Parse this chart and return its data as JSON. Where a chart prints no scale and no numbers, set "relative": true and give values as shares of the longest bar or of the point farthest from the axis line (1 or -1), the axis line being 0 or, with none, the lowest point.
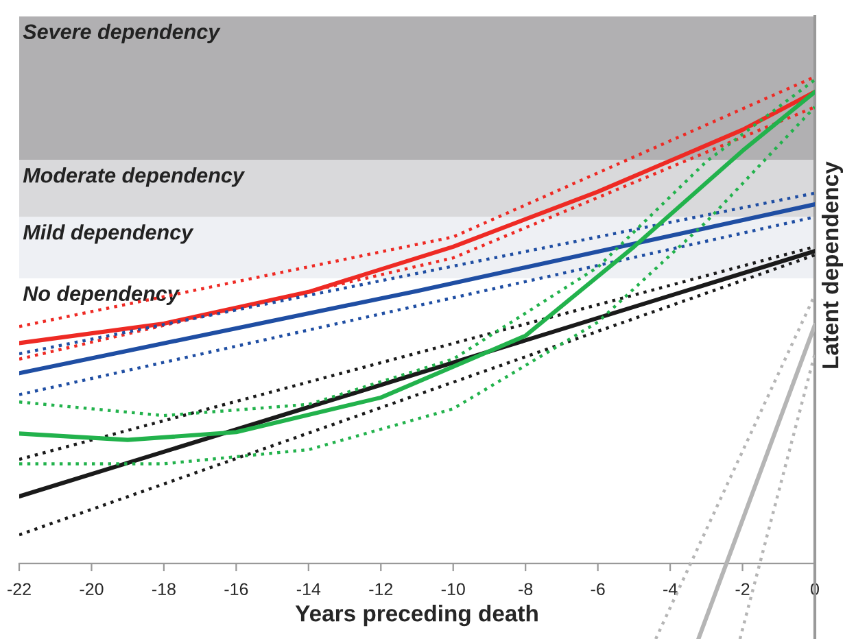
{
  "chart_data": {
    "type": "line",
    "relative": true,
    "xlabel": "Years preceding death",
    "ylabel": "Latent dependency",
    "xlim": [
      -22,
      0
    ],
    "xticks": [
      -22,
      -20,
      -18,
      -16,
      -14,
      -12,
      -10,
      -8,
      -6,
      -4,
      -2,
      0
    ],
    "tick_labels": "x",
    "grid": false,
    "legend": false,
    "marker": "none",
    "bands": [
      {
        "axis": "y",
        "from": 0.829,
        "to": 1.124,
        "label": "Severe dependency",
        "color": "#b1b0b2"
      },
      {
        "axis": "y",
        "from": 0.712,
        "to": 0.829,
        "label": "Moderate dependency",
        "color": "#d9d9db"
      },
      {
        "axis": "y",
        "from": 0.586,
        "to": 0.712,
        "label": "Mild dependency",
        "color": "#eef0f4"
      }
    ],
    "annotations": [
      "No dependency"
    ],
    "series": [
      {
        "color": "#ee2a24",
        "line_style": "solid",
        "x": [
          -22,
          -18,
          -14,
          -10,
          -6,
          -2,
          0
        ],
        "values": [
          0.453,
          0.493,
          0.558,
          0.651,
          0.764,
          0.891,
          0.969
        ]
      },
      {
        "color": "#ee2a24",
        "line_style": "dotted",
        "x": [
          -22,
          -10,
          0
        ],
        "values": [
          0.487,
          0.671,
          1.0
        ]
      },
      {
        "color": "#ee2a24",
        "line_style": "dotted",
        "x": [
          -22,
          -10,
          0
        ],
        "values": [
          0.42,
          0.628,
          0.938
        ]
      },
      {
        "color": "#1f4ea3",
        "line_style": "solid",
        "x": [
          -22,
          -11,
          0
        ],
        "values": [
          0.391,
          0.56,
          0.738
        ]
      },
      {
        "color": "#1f4ea3",
        "line_style": "dotted",
        "x": [
          -22,
          0
        ],
        "values": [
          0.431,
          0.761
        ]
      },
      {
        "color": "#1f4ea3",
        "line_style": "dotted",
        "x": [
          -22,
          0
        ],
        "values": [
          0.347,
          0.712
        ]
      },
      {
        "color": "#1a1a1a",
        "line_style": "solid",
        "x": [
          -22,
          0
        ],
        "values": [
          0.138,
          0.642
        ]
      },
      {
        "color": "#1a1a1a",
        "line_style": "dotted",
        "x": [
          -22,
          0
        ],
        "values": [
          0.214,
          0.651
        ]
      },
      {
        "color": "#1a1a1a",
        "line_style": "dotted",
        "x": [
          -22,
          0
        ],
        "values": [
          0.059,
          0.634
        ]
      },
      {
        "color": "#22b24c",
        "line_style": "solid",
        "x": [
          -22,
          -19,
          -16,
          -12,
          -8,
          -5,
          -2,
          0
        ],
        "values": [
          0.267,
          0.254,
          0.27,
          0.341,
          0.468,
          0.651,
          0.848,
          0.969
        ]
      },
      {
        "color": "#22b24c",
        "line_style": "dotted",
        "x": [
          -22,
          -18,
          -14,
          -10,
          -6,
          -3,
          0
        ],
        "values": [
          0.332,
          0.304,
          0.327,
          0.42,
          0.609,
          0.826,
          0.994
        ]
      },
      {
        "color": "#22b24c",
        "line_style": "dotted",
        "x": [
          -22,
          -18,
          -14,
          -10,
          -6,
          -3,
          0
        ],
        "values": [
          0.205,
          0.205,
          0.234,
          0.318,
          0.496,
          0.702,
          0.938
        ]
      },
      {
        "color": "#b5b5b5",
        "line_style": "solid",
        "x": [
          -3.22,
          0
        ],
        "values": [
          -0.155,
          0.49
        ]
      },
      {
        "color": "#b5b5b5",
        "line_style": "dotted",
        "x": [
          -4.4,
          0
        ],
        "values": [
          -0.155,
          0.552
        ]
      },
      {
        "color": "#b5b5b5",
        "line_style": "dotted",
        "x": [
          -2.07,
          0
        ],
        "values": [
          -0.155,
          0.431
        ]
      }
    ]
  }
}
